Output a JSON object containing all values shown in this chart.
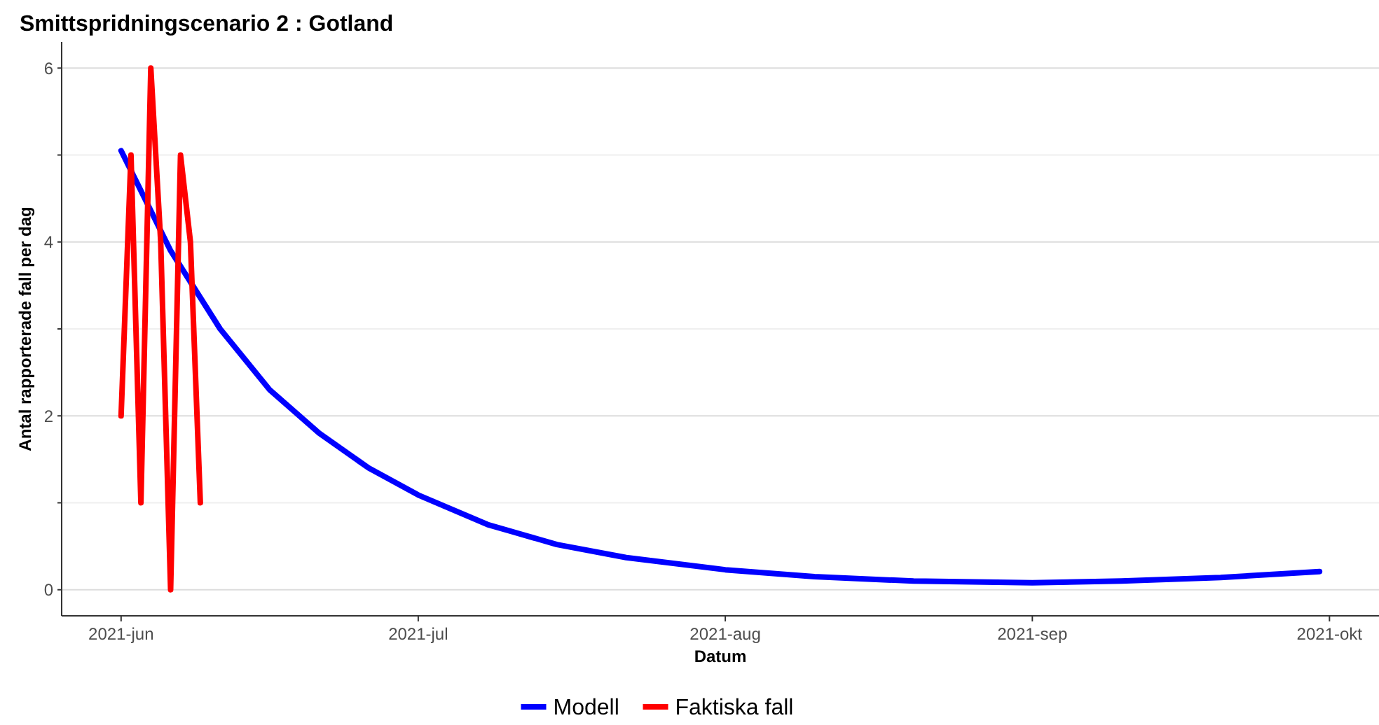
{
  "chart_data": {
    "type": "line",
    "title": "Smittspridningscenario  2 :  Gotland",
    "xlabel": "Datum",
    "ylabel": "Antal rapporterade fall per dag",
    "xlim": [
      "2021-05-26",
      "2021-10-06"
    ],
    "xticks": [
      {
        "value": "2021-06-01",
        "label": "2021-jun"
      },
      {
        "value": "2021-07-01",
        "label": "2021-jul"
      },
      {
        "value": "2021-08-01",
        "label": "2021-aug"
      },
      {
        "value": "2021-09-01",
        "label": "2021-sep"
      },
      {
        "value": "2021-10-01",
        "label": "2021-okt"
      }
    ],
    "ylim": [
      -0.3,
      6.3
    ],
    "yticks": [
      0,
      {
        "value": 1,
        "label": null
      },
      2,
      {
        "value": 3,
        "label": null
      },
      4,
      {
        "value": 5,
        "label": null
      },
      6
    ],
    "grid": "y",
    "legend": "bottom",
    "marker": "none",
    "line_style": "solid",
    "series": [
      {
        "name": "Modell",
        "color": "#0000ff",
        "x": [
          "2021-06-01",
          "2021-06-06",
          "2021-06-11",
          "2021-06-16",
          "2021-06-21",
          "2021-06-26",
          "2021-07-01",
          "2021-07-08",
          "2021-07-15",
          "2021-07-22",
          "2021-08-01",
          "2021-08-10",
          "2021-08-20",
          "2021-09-01",
          "2021-09-10",
          "2021-09-20",
          "2021-09-30"
        ],
        "values": [
          5.05,
          3.9,
          3.0,
          2.3,
          1.8,
          1.4,
          1.09,
          0.75,
          0.52,
          0.37,
          0.23,
          0.15,
          0.1,
          0.08,
          0.1,
          0.14,
          0.21
        ]
      },
      {
        "name": "Faktiska fall",
        "color": "#ff0000",
        "x": [
          "2021-06-01",
          "2021-06-02",
          "2021-06-03",
          "2021-06-04",
          "2021-06-05",
          "2021-06-06",
          "2021-06-07",
          "2021-06-08",
          "2021-06-09"
        ],
        "values": [
          2,
          5,
          1,
          6,
          4,
          0,
          5,
          4,
          1
        ]
      }
    ]
  }
}
